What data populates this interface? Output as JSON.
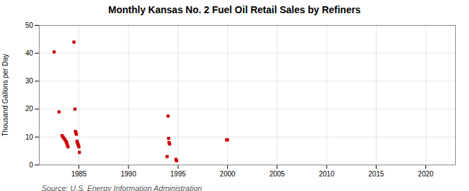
{
  "chart_data": {
    "type": "scatter",
    "title": "Monthly Kansas No. 2 Fuel Oil Retail Sales by Refiners",
    "ylabel": "Thousand Gallons per Day",
    "source": "Source: U.S. Energy Information Administration",
    "color": "#cc0000",
    "marker": "square",
    "grid": true,
    "xlim": [
      1981,
      2023
    ],
    "ylim": [
      0,
      50
    ],
    "xticks": [
      1985,
      1990,
      1995,
      2000,
      2005,
      2010,
      2015,
      2020
    ],
    "yticks": [
      0,
      10,
      20,
      30,
      40,
      50
    ],
    "x": [
      1982.5,
      1983.0,
      1983.3,
      1983.4,
      1983.5,
      1983.6,
      1983.7,
      1983.75,
      1983.8,
      1983.85,
      1983.9,
      1984.5,
      1984.6,
      1984.65,
      1984.7,
      1984.75,
      1984.8,
      1984.85,
      1984.9,
      1984.95,
      1985.0,
      1985.05,
      1993.9,
      1994.0,
      1994.05,
      1994.1,
      1994.15,
      1994.8,
      1994.85,
      1999.9,
      2000.0
    ],
    "values": [
      40.5,
      19.0,
      10.5,
      10.0,
      9.5,
      9.0,
      8.5,
      8.0,
      7.5,
      7.0,
      6.5,
      44.0,
      20.0,
      12.0,
      11.5,
      11.0,
      8.5,
      8.0,
      7.5,
      7.0,
      6.5,
      4.5,
      3.0,
      17.5,
      9.5,
      8.0,
      7.5,
      2.0,
      1.5,
      9.0,
      9.0
    ]
  }
}
